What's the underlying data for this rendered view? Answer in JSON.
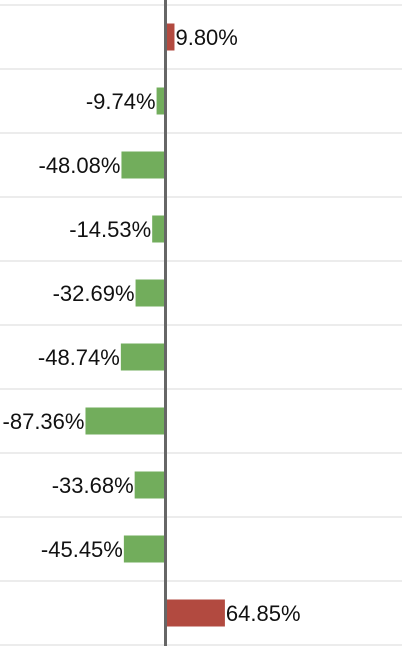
{
  "chart_data": {
    "type": "bar",
    "orientation": "horizontal",
    "values": [
      9.8,
      -9.74,
      -48.08,
      -14.53,
      -32.69,
      -48.74,
      -87.36,
      -33.68,
      -45.45,
      64.85
    ],
    "value_labels": [
      "9.80%",
      "-9.74%",
      "-48.08%",
      "-14.53%",
      "-32.69%",
      "-48.74%",
      "-87.36%",
      "-33.68%",
      "-45.45%",
      "64.85%"
    ],
    "xlabel": "",
    "ylabel": "",
    "grid": true,
    "legend": "none",
    "colors": {
      "positive": "#b24a40",
      "negative": "#72ad5c",
      "axis": "#666666",
      "grid": "#d9d9d9"
    }
  }
}
